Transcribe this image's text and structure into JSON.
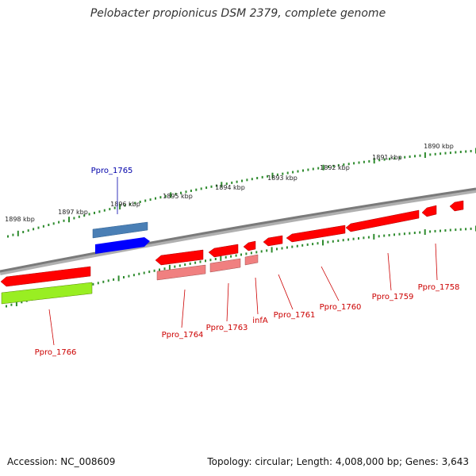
{
  "title": "Pelobacter propionicus DSM 2379, complete genome",
  "footer": {
    "accession": "Accession: NC_008609",
    "summary": "Topology: circular; Length: 4,008,000 bp; Genes: 3,643"
  },
  "colors": {
    "backbone": "#808080",
    "tick": "#2e8b2e",
    "gene_red": "#ff0000",
    "gene_pink": "#f08080",
    "gene_blue": "#0000ff",
    "gene_steelblue": "#4a7fb5",
    "gene_green": "#99ee22",
    "label_red": "#cc0000",
    "label_blue": "#0000aa"
  },
  "kbp_labels": [
    "1898 kbp",
    "1897 kbp",
    "1896 kbp",
    "1895 kbp",
    "1894 kbp",
    "1893 kbp",
    "1892 kbp",
    "1891 kbp",
    "1890 kbp"
  ],
  "gene_labels": [
    "Ppro_1765",
    "Ppro_1766",
    "Ppro_1764",
    "Ppro_1763",
    "infA",
    "Ppro_1761",
    "Ppro_1760",
    "Ppro_1759",
    "Ppro_1758"
  ]
}
